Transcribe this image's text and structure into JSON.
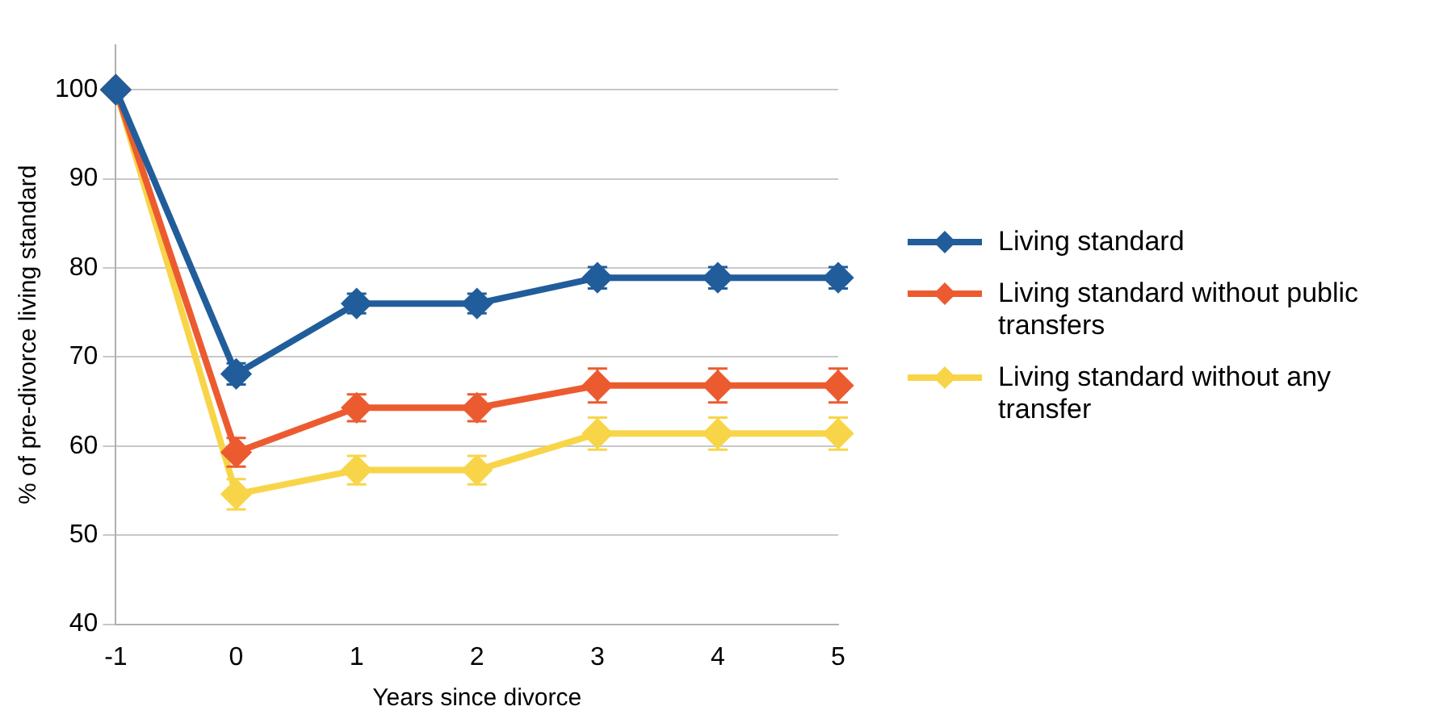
{
  "chart_data": {
    "type": "line",
    "xlabel": "Years since divorce",
    "ylabel": "% of pre-divorce living standard",
    "categories": [
      "-1",
      "0",
      "1",
      "2",
      "3",
      "4",
      "5"
    ],
    "series": [
      {
        "name": "Living standard",
        "color": "#215d9b",
        "values": [
          100,
          68.1,
          76.0,
          76.0,
          78.9,
          78.9,
          78.9
        ],
        "errors": [
          null,
          1.2,
          1.1,
          1.1,
          1.2,
          1.2,
          1.2
        ]
      },
      {
        "name": "Living standard without public transfers",
        "color": "#ec5b30",
        "values": [
          100,
          59.3,
          64.3,
          64.3,
          66.8,
          66.8,
          66.8
        ],
        "errors": [
          null,
          1.6,
          1.5,
          1.5,
          1.9,
          1.9,
          1.9
        ]
      },
      {
        "name": "Living standard without any transfer",
        "color": "#f8d548",
        "values": [
          100,
          54.6,
          57.3,
          57.3,
          61.4,
          61.4,
          61.4
        ],
        "errors": [
          null,
          1.7,
          1.6,
          1.6,
          1.8,
          1.8,
          1.8
        ]
      }
    ],
    "ylim": [
      40,
      105
    ],
    "yticks": [
      40,
      50,
      60,
      70,
      80,
      90,
      100
    ],
    "grid": "y",
    "legend": "right",
    "marker": "diamond",
    "line_style": "solid"
  }
}
